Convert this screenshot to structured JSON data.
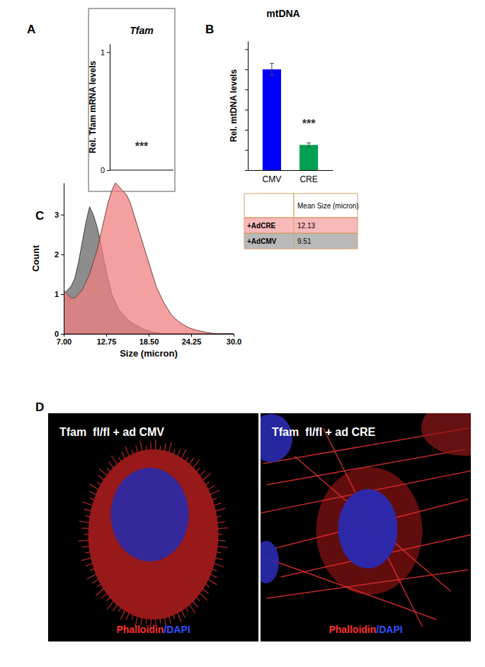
{
  "chart_data": [
    {
      "type": "bar",
      "panel_label": "A",
      "title": "Tfam",
      "ylabel": "Rel. Tfam mRNA levels",
      "ylim": [
        0,
        1.07
      ],
      "yticks": [
        0,
        1
      ],
      "tick_labels": "y",
      "annotations": [
        {
          "text": "***",
          "y": 0.17
        }
      ]
    },
    {
      "type": "bar",
      "panel_label": "B",
      "title": "mtDNA",
      "ylabel": "Rel. mtDNA levels",
      "categories": [
        "CMV",
        "CRE"
      ],
      "values": [
        1.0,
        0.25
      ],
      "errors": [
        0.06,
        0.02
      ],
      "colors": [
        "#0000ff",
        "#00a050"
      ],
      "ylim": [
        0,
        1.28
      ],
      "yticks": [
        0,
        0.2,
        0.4,
        0.6,
        0.8,
        1.0,
        1.2
      ],
      "tick_labels": "x",
      "annotations": [
        {
          "text": "***",
          "category": 1,
          "y": 0.42
        }
      ]
    },
    {
      "type": "area",
      "panel_label": "C",
      "xlabel": "Size (micron)",
      "ylabel": "Count",
      "legend_title": "Mean Size (micron)",
      "legend": "right",
      "x": [
        7,
        7.5,
        8,
        8.5,
        9,
        9.5,
        10,
        10.5,
        11,
        11.5,
        12,
        12.5,
        13,
        13.5,
        14,
        14.5,
        15,
        15.5,
        16,
        16.5,
        17,
        17.5,
        18,
        18.5,
        19,
        19.5,
        20,
        20.5,
        21,
        21.5,
        22,
        22.5,
        23,
        23.5,
        24,
        24.5,
        25,
        25.5,
        26,
        26.5,
        27,
        27.5,
        28,
        28.5,
        29,
        29.5,
        30
      ],
      "xlim": [
        7,
        30
      ],
      "xticks": [
        {
          "value": 7,
          "label": "7.00"
        },
        12.75,
        {
          "value": 18.5,
          "label": "18.50"
        },
        24.25,
        {
          "value": 30,
          "label": "30.0"
        }
      ],
      "ylim": [
        0,
        3.8
      ],
      "yticks": [
        0,
        1,
        2,
        3
      ],
      "series": [
        {
          "name": "+AdCRE",
          "color": "#f08080",
          "mean_size": 12.13,
          "values": [
            1.1,
            1.0,
            0.9,
            0.9,
            1.0,
            1.1,
            1.3,
            1.5,
            1.8,
            2.1,
            2.5,
            2.9,
            3.3,
            3.6,
            3.8,
            3.7,
            3.6,
            3.5,
            3.3,
            3.0,
            2.7,
            2.4,
            2.1,
            1.8,
            1.5,
            1.2,
            1.0,
            0.8,
            0.65,
            0.5,
            0.4,
            0.32,
            0.25,
            0.2,
            0.15,
            0.12,
            0.09,
            0.07,
            0.05,
            0.03,
            0.02,
            0,
            0,
            0,
            0,
            0,
            0
          ]
        },
        {
          "name": "+AdCMV",
          "color": "#808080",
          "mean_size": 9.51,
          "values": [
            1.0,
            1.1,
            1.2,
            1.4,
            1.8,
            2.3,
            2.8,
            3.2,
            3.0,
            2.7,
            2.3,
            1.8,
            1.4,
            1.0,
            0.8,
            0.6,
            0.5,
            0.4,
            0.3,
            0.25,
            0.2,
            0.15,
            0.1,
            0.08,
            0.05,
            0.03,
            0.02,
            0,
            0,
            0,
            0,
            0,
            0,
            0,
            0,
            0,
            0,
            0,
            0,
            0,
            0,
            0,
            0,
            0,
            0,
            0,
            0
          ]
        }
      ]
    },
    {
      "type": "image",
      "panel_label": "D",
      "images": [
        {
          "title": "Tfam  fl/fl + ad CMV",
          "stain_labels": [
            {
              "text": "Phalloidin",
              "color": "#ff3030"
            },
            {
              "text": "/DAPI",
              "color": "#3050ff"
            }
          ]
        },
        {
          "title": "Tfam  fl/fl + ad CRE",
          "stain_labels": [
            {
              "text": "Phalloidin",
              "color": "#ff3030"
            },
            {
              "text": "/DAPI",
              "color": "#3050ff"
            }
          ]
        }
      ]
    }
  ]
}
